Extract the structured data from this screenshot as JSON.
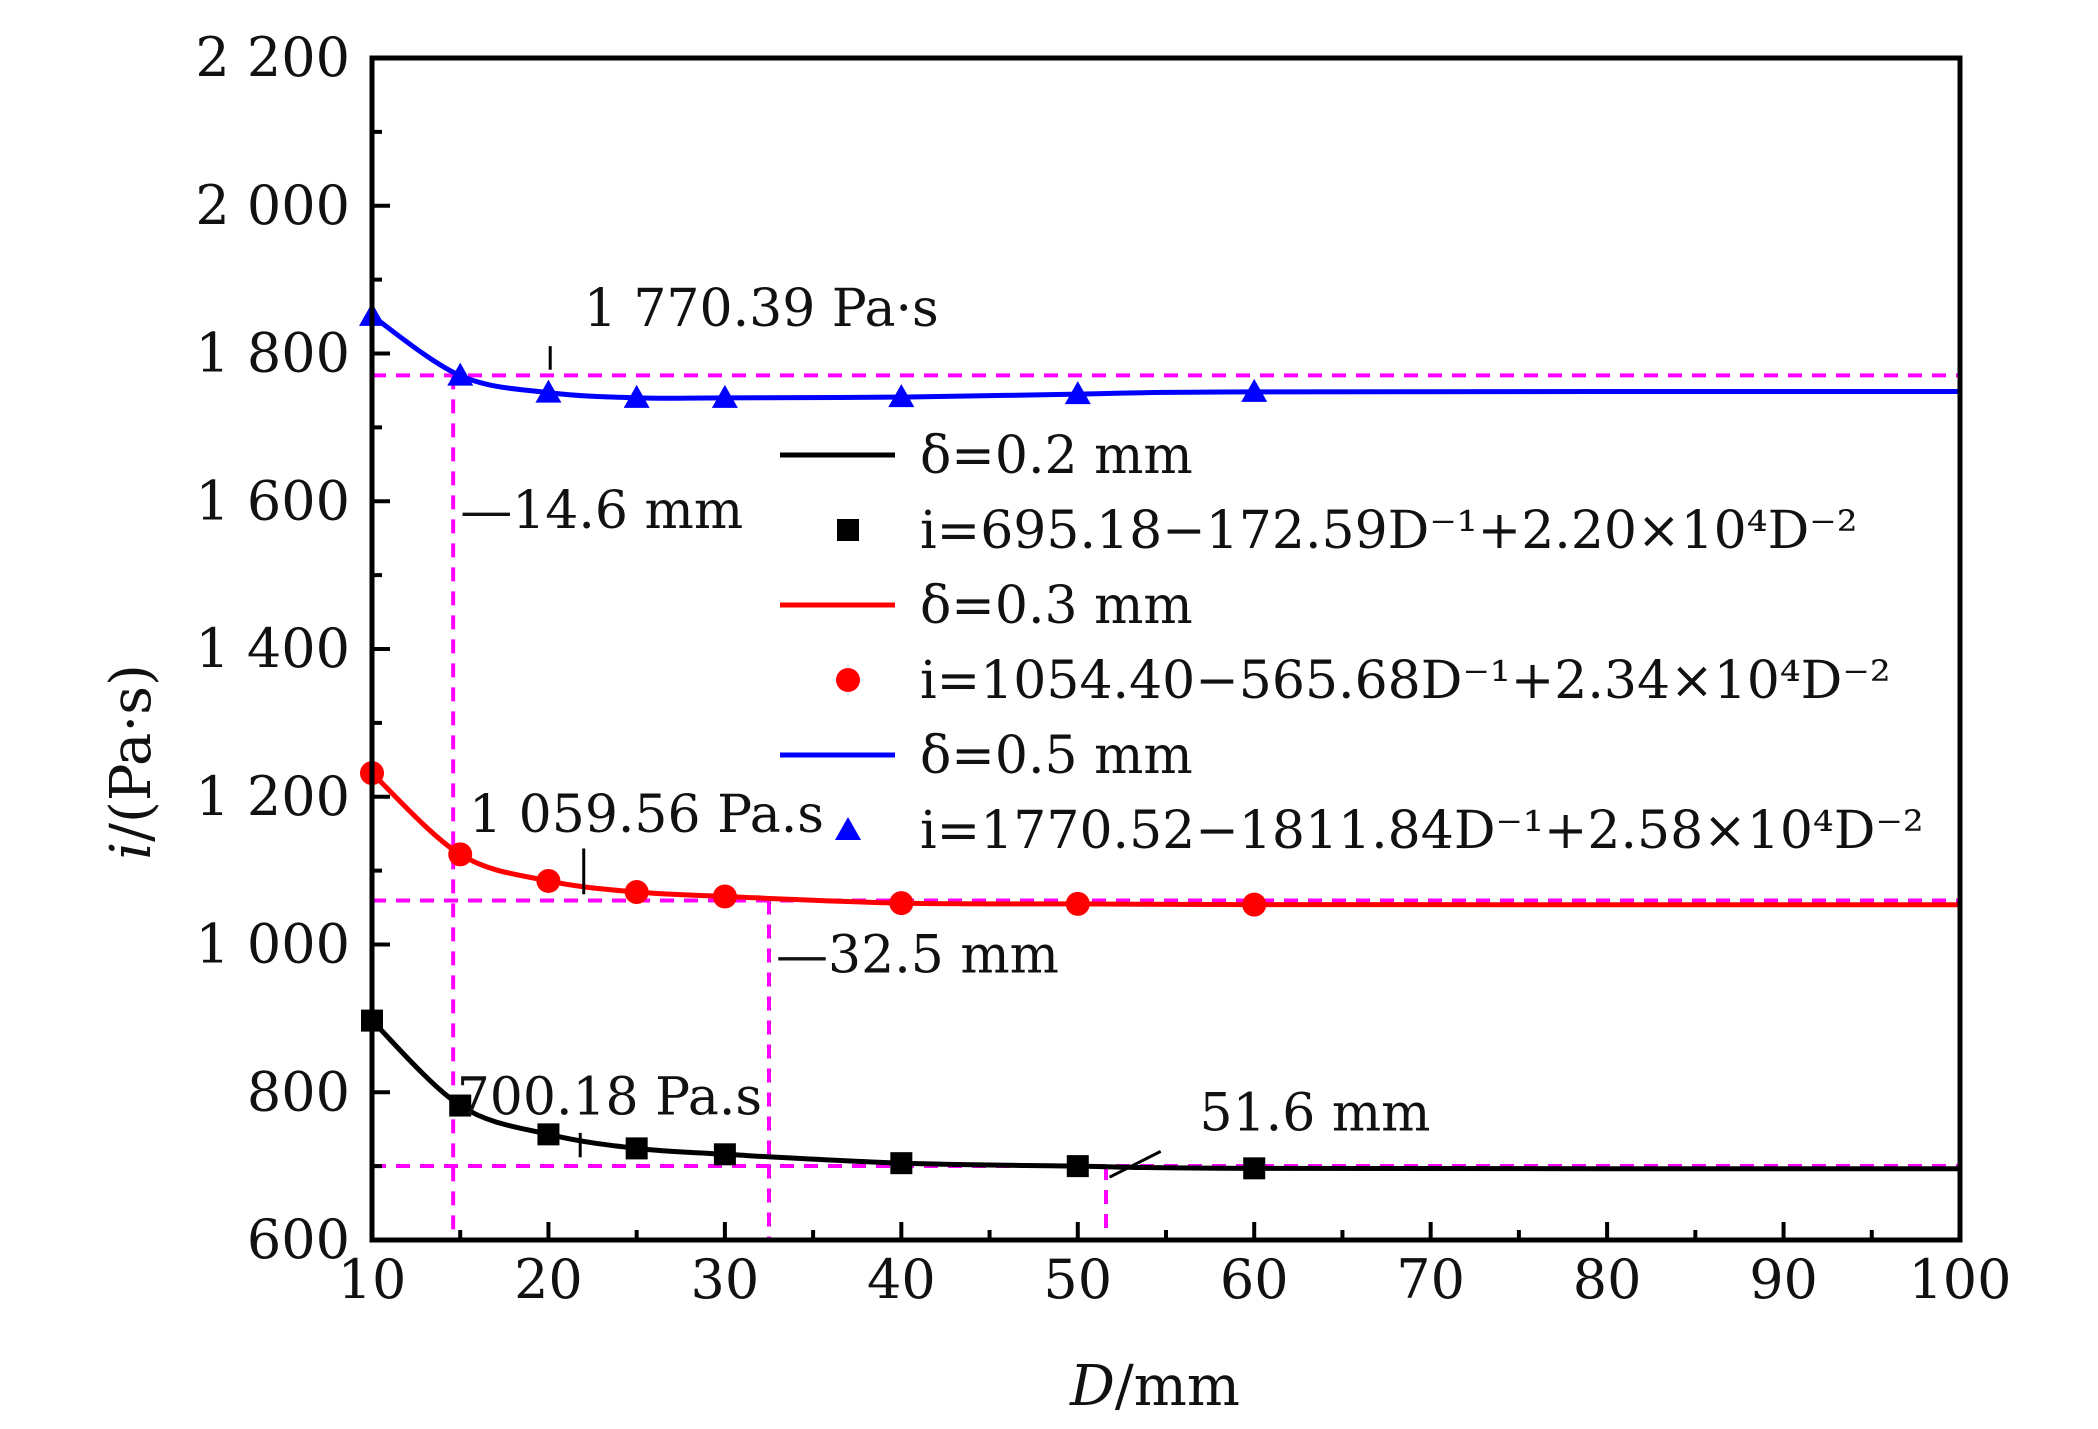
{
  "chart_data": {
    "type": "line",
    "xlabel_var": "D",
    "xlabel_unit": "/mm",
    "ylabel_var": "i",
    "ylabel_unit": "/(Pa·s)",
    "xlim": [
      10,
      100
    ],
    "ylim": [
      600,
      2200
    ],
    "xticks": [
      10,
      20,
      30,
      40,
      50,
      60,
      70,
      80,
      90,
      100
    ],
    "xtick_labels": [
      "10",
      "20",
      "30",
      "40",
      "50",
      "60",
      "70",
      "80",
      "90",
      "100"
    ],
    "yticks": [
      600,
      800,
      1000,
      1200,
      1400,
      1600,
      1800,
      2000,
      2200
    ],
    "ytick_labels": [
      "600",
      "800",
      "1 000",
      "1 200",
      "1 400",
      "1 600",
      "1 800",
      "2 000",
      "2 200"
    ],
    "grid": false,
    "legend_position": "center-right",
    "series": [
      {
        "name": "δ=0.2 mm",
        "fit_label": "i=695.18−172.59D⁻¹+2.20×10⁴D⁻²",
        "color": "#000000",
        "marker": "square",
        "x": [
          10,
          15,
          20,
          25,
          30,
          40,
          50,
          60
        ],
        "y": [
          897,
          782,
          743,
          724,
          716,
          704,
          700,
          697
        ]
      },
      {
        "name": "δ=0.3 mm",
        "fit_label": "i=1054.40−565.68D⁻¹+2.34×10⁴D⁻²",
        "color": "#ff0000",
        "marker": "circle",
        "x": [
          10,
          15,
          20,
          25,
          30,
          40,
          50,
          60
        ],
        "y": [
          1232,
          1122,
          1086,
          1071,
          1065,
          1056,
          1055,
          1054
        ]
      },
      {
        "name": "δ=0.5 mm",
        "fit_label": "i=1770.52−1811.84D⁻¹+2.58×10⁴D⁻²",
        "color": "#0000ff",
        "marker": "triangle",
        "x": [
          10,
          15,
          20,
          25,
          30,
          40,
          50,
          60
        ],
        "y": [
          1851,
          1770,
          1747,
          1740,
          1740,
          1741,
          1745,
          1748
        ]
      }
    ],
    "reference_lines": {
      "color": "#ff00ff",
      "horizontal": [
        1770.39,
        1059.56,
        700.18
      ],
      "vertical": [
        14.6,
        32.5,
        51.6
      ]
    },
    "annotations": [
      {
        "text": "1 770.39 Pa·s",
        "x": 22,
        "y": 1837,
        "leader": [
          [
            20.1,
            1810
          ],
          [
            20.1,
            1778
          ]
        ]
      },
      {
        "text": "—14.6 mm",
        "x": 15,
        "y": 1564
      },
      {
        "text": "1 059.56 Pa.s",
        "x": 15.5,
        "y": 1152,
        "leader": [
          [
            22.0,
            1130
          ],
          [
            22.0,
            1068
          ]
        ]
      },
      {
        "text": "—32.5 mm",
        "x": 32.9,
        "y": 962
      },
      {
        "text": "700.18 Pa.s",
        "x": 14.8,
        "y": 770,
        "leader": [
          [
            21.8,
            745
          ],
          [
            21.8,
            712
          ]
        ]
      },
      {
        "text": "51.6 mm",
        "x": 56.9,
        "y": 748,
        "leader": [
          [
            54.7,
            720
          ],
          [
            51.8,
            685
          ]
        ]
      }
    ]
  }
}
